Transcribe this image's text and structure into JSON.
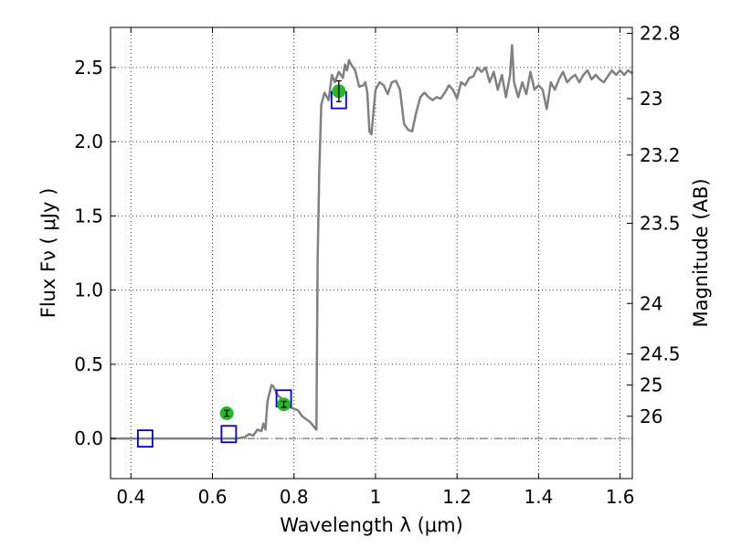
{
  "chart_data": {
    "type": "line",
    "xlabel": "Wavelength  λ (μm)",
    "ylabel": "Flux  Fν  ( μJy )",
    "ylabel_right": "Magnitude (AB)",
    "xlim": [
      0.35,
      1.63
    ],
    "ylim": [
      -0.27,
      2.77
    ],
    "x_ticks": [
      {
        "value": 0.4,
        "label": "0.4"
      },
      {
        "value": 0.6,
        "label": "0.6"
      },
      {
        "value": 0.8,
        "label": "0.8"
      },
      {
        "value": 1.0,
        "label": "1"
      },
      {
        "value": 1.2,
        "label": "1.2"
      },
      {
        "value": 1.4,
        "label": "1.4"
      },
      {
        "value": 1.6,
        "label": "1.6"
      }
    ],
    "y_ticks": [
      {
        "value": 0.0,
        "label": "0.0"
      },
      {
        "value": 0.5,
        "label": "0.5"
      },
      {
        "value": 1.0,
        "label": "1.0"
      },
      {
        "value": 1.5,
        "label": "1.5"
      },
      {
        "value": 2.0,
        "label": "2.0"
      },
      {
        "value": 2.5,
        "label": "2.5"
      }
    ],
    "right_ticks": [
      {
        "flux": 2.73,
        "label": "22.8"
      },
      {
        "flux": 2.29,
        "label": "23"
      },
      {
        "flux": 1.91,
        "label": "23.2"
      },
      {
        "flux": 1.45,
        "label": "23.5"
      },
      {
        "flux": 0.91,
        "label": "24"
      },
      {
        "flux": 0.57,
        "label": "24.5"
      },
      {
        "flux": 0.36,
        "label": "25"
      },
      {
        "flux": 0.15,
        "label": "26"
      }
    ],
    "grid": true,
    "colors": {
      "spectrum": "#808080",
      "model_box": "#0000cc",
      "observed": "#22bb22",
      "errorbar": "#000000",
      "zero_line": "#555555"
    },
    "series": [
      {
        "kind": "spectrum_line",
        "points": [
          [
            0.35,
            0.0
          ],
          [
            0.5,
            0.0
          ],
          [
            0.6,
            0.0
          ],
          [
            0.66,
            0.0
          ],
          [
            0.68,
            0.01
          ],
          [
            0.69,
            0.03
          ],
          [
            0.7,
            0.02
          ],
          [
            0.71,
            0.06
          ],
          [
            0.72,
            0.05
          ],
          [
            0.725,
            0.1
          ],
          [
            0.73,
            0.06
          ],
          [
            0.735,
            0.25
          ],
          [
            0.745,
            0.36
          ],
          [
            0.75,
            0.35
          ],
          [
            0.76,
            0.29
          ],
          [
            0.77,
            0.27
          ],
          [
            0.78,
            0.25
          ],
          [
            0.79,
            0.21
          ],
          [
            0.8,
            0.2
          ],
          [
            0.81,
            0.19
          ],
          [
            0.82,
            0.15
          ],
          [
            0.84,
            0.11
          ],
          [
            0.855,
            0.06
          ],
          [
            0.858,
            1.2
          ],
          [
            0.862,
            1.8
          ],
          [
            0.867,
            2.25
          ],
          [
            0.875,
            2.33
          ],
          [
            0.885,
            2.28
          ],
          [
            0.893,
            2.45
          ],
          [
            0.9,
            2.4
          ],
          [
            0.91,
            2.47
          ],
          [
            0.92,
            2.43
          ],
          [
            0.925,
            2.52
          ],
          [
            0.93,
            2.48
          ],
          [
            0.935,
            2.55
          ],
          [
            0.94,
            2.52
          ],
          [
            0.95,
            2.48
          ],
          [
            0.96,
            2.37
          ],
          [
            0.97,
            2.38
          ],
          [
            0.975,
            2.4
          ],
          [
            0.98,
            2.33
          ],
          [
            0.985,
            2.07
          ],
          [
            0.99,
            2.05
          ],
          [
            1.0,
            2.35
          ],
          [
            1.01,
            2.4
          ],
          [
            1.02,
            2.38
          ],
          [
            1.03,
            2.32
          ],
          [
            1.04,
            2.4
          ],
          [
            1.05,
            2.41
          ],
          [
            1.06,
            2.35
          ],
          [
            1.07,
            2.12
          ],
          [
            1.08,
            2.08
          ],
          [
            1.09,
            2.07
          ],
          [
            1.1,
            2.2
          ],
          [
            1.11,
            2.3
          ],
          [
            1.12,
            2.33
          ],
          [
            1.13,
            2.3
          ],
          [
            1.14,
            2.28
          ],
          [
            1.15,
            2.3
          ],
          [
            1.16,
            2.29
          ],
          [
            1.17,
            2.33
          ],
          [
            1.18,
            2.38
          ],
          [
            1.19,
            2.35
          ],
          [
            1.2,
            2.29
          ],
          [
            1.21,
            2.4
          ],
          [
            1.22,
            2.38
          ],
          [
            1.23,
            2.43
          ],
          [
            1.24,
            2.44
          ],
          [
            1.25,
            2.5
          ],
          [
            1.26,
            2.47
          ],
          [
            1.27,
            2.5
          ],
          [
            1.28,
            2.4
          ],
          [
            1.29,
            2.47
          ],
          [
            1.3,
            2.35
          ],
          [
            1.31,
            2.45
          ],
          [
            1.32,
            2.3
          ],
          [
            1.33,
            2.45
          ],
          [
            1.335,
            2.65
          ],
          [
            1.34,
            2.4
          ],
          [
            1.35,
            2.3
          ],
          [
            1.36,
            2.4
          ],
          [
            1.37,
            2.32
          ],
          [
            1.38,
            2.47
          ],
          [
            1.39,
            2.35
          ],
          [
            1.4,
            2.38
          ],
          [
            1.41,
            2.35
          ],
          [
            1.42,
            2.22
          ],
          [
            1.43,
            2.4
          ],
          [
            1.44,
            2.35
          ],
          [
            1.45,
            2.42
          ],
          [
            1.46,
            2.47
          ],
          [
            1.47,
            2.4
          ],
          [
            1.48,
            2.43
          ],
          [
            1.49,
            2.45
          ],
          [
            1.5,
            2.4
          ],
          [
            1.51,
            2.45
          ],
          [
            1.52,
            2.48
          ],
          [
            1.53,
            2.42
          ],
          [
            1.54,
            2.45
          ],
          [
            1.55,
            2.42
          ],
          [
            1.56,
            2.4
          ],
          [
            1.57,
            2.44
          ],
          [
            1.58,
            2.48
          ],
          [
            1.59,
            2.45
          ],
          [
            1.6,
            2.48
          ],
          [
            1.61,
            2.45
          ],
          [
            1.62,
            2.48
          ],
          [
            1.63,
            2.46
          ]
        ]
      },
      {
        "kind": "model_photometry",
        "points": [
          {
            "x": 0.435,
            "y": 0.0
          },
          {
            "x": 0.64,
            "y": 0.03
          },
          {
            "x": 0.775,
            "y": 0.27
          },
          {
            "x": 0.91,
            "y": 2.28
          }
        ]
      },
      {
        "kind": "observed_photometry",
        "points": [
          {
            "x": 0.635,
            "y": 0.17,
            "err": 0.02
          },
          {
            "x": 0.775,
            "y": 0.23,
            "err": 0.02
          },
          {
            "x": 0.91,
            "y": 2.34,
            "err": 0.07
          }
        ]
      }
    ]
  }
}
